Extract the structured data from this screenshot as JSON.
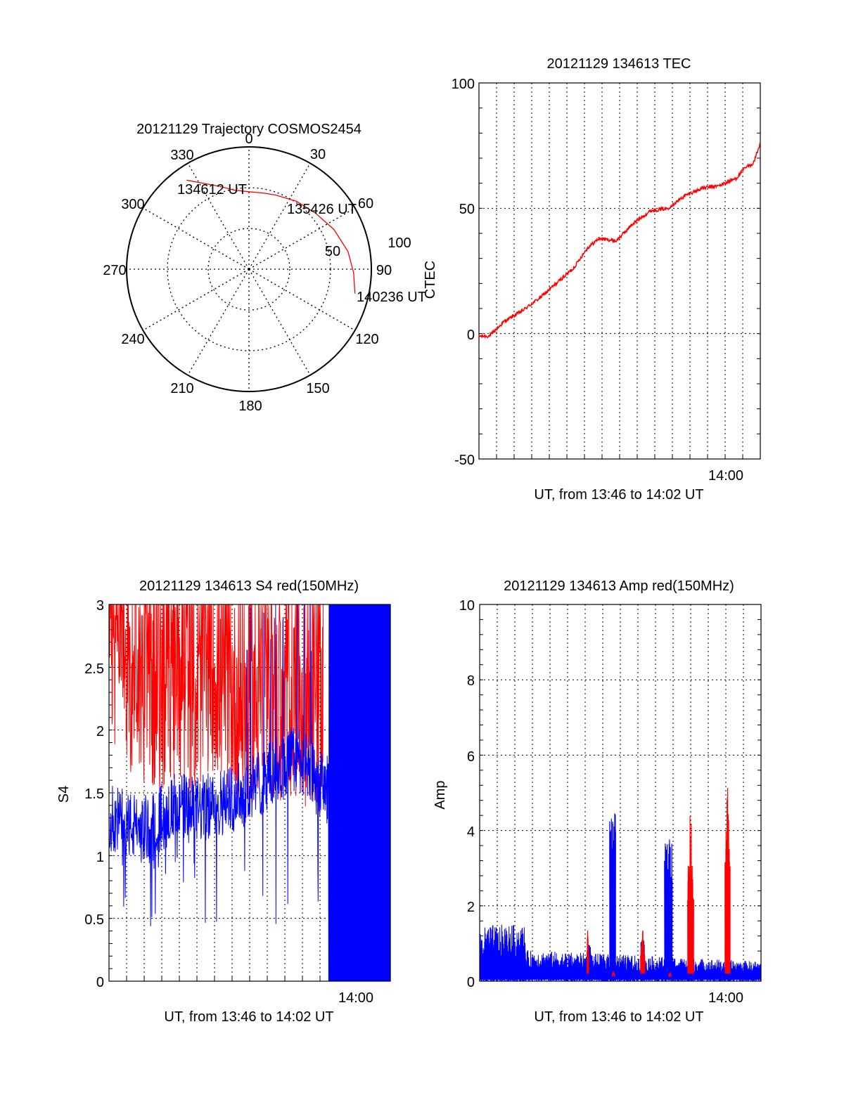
{
  "colors": {
    "red": "#ff0000",
    "blue": "#0000ff",
    "axis": "#000000",
    "grid": "#000000"
  },
  "chart_data": [
    {
      "id": "trajectory",
      "type": "polar",
      "title": "20121129 Trajectory COSMOS2454",
      "azimuth_labels": [
        "0",
        "30",
        "60",
        "90",
        "120",
        "150",
        "180",
        "210",
        "240",
        "270",
        "300",
        "330"
      ],
      "radial_ring_labels": [
        "50",
        "100"
      ],
      "elevation_rings": [
        30,
        60
      ],
      "annotations": [
        "134612 UT",
        "135426 UT",
        "140236 UT"
      ],
      "series": [
        {
          "color": "red",
          "points": [
            {
              "az": 325,
              "el": 10
            },
            {
              "az": 340,
              "el": 25
            },
            {
              "az": 350,
              "el": 31
            },
            {
              "az": 0,
              "el": 33
            },
            {
              "az": 10,
              "el": 33
            },
            {
              "az": 20,
              "el": 32
            },
            {
              "az": 35,
              "el": 29
            },
            {
              "az": 50,
              "el": 26
            },
            {
              "az": 65,
              "el": 21
            },
            {
              "az": 80,
              "el": 16
            },
            {
              "az": 92,
              "el": 13
            },
            {
              "az": 103,
              "el": 10
            }
          ]
        }
      ]
    },
    {
      "id": "tec",
      "type": "line",
      "title": "20121129 134613 TEC",
      "xlabel": "UT, from 13:46 to 14:02 UT",
      "ylabel": "CTEC",
      "xlim": [
        0,
        16.4
      ],
      "ylim": [
        -50,
        100
      ],
      "yticks": [
        "100",
        "50",
        "0",
        "-50"
      ],
      "xtick_label": "14:00",
      "grid": true,
      "series": [
        {
          "color": "red",
          "x": [
            0,
            0.6,
            1.5,
            2.5,
            3.5,
            4.5,
            5.5,
            6.3,
            7.0,
            8.0,
            9.0,
            10.0,
            11.0,
            12.0,
            13.0,
            14.0,
            15.0,
            15.5,
            16.0,
            16.4
          ],
          "y": [
            -1,
            -1,
            5,
            9,
            14,
            20,
            26,
            34,
            38,
            37,
            44,
            49,
            50,
            55,
            58,
            59,
            62,
            66,
            68,
            76
          ]
        }
      ]
    },
    {
      "id": "s4",
      "type": "line",
      "title": "20121129 134613 S4 red(150MHz)",
      "xlabel": "UT, from 13:46 to 14:02 UT",
      "ylabel": "S4",
      "xlim": [
        0,
        16.4
      ],
      "ylim": [
        0,
        3
      ],
      "yticks": [
        "3",
        "2.5",
        "2",
        "1.5",
        "1",
        "0.5",
        "0"
      ],
      "xtick_label": "14:00",
      "grid": true,
      "series": [
        {
          "color": "red",
          "x": [
            0,
            1,
            2,
            3,
            4,
            5,
            6,
            7,
            8,
            9,
            10,
            11,
            12,
            12.5
          ],
          "y": [
            2.6,
            2.4,
            2.3,
            2.2,
            2.3,
            2.2,
            2.4,
            2.2,
            2.1,
            2.2,
            2.1,
            2.2,
            2.0,
            2.0
          ]
        },
        {
          "color": "blue",
          "x": [
            0,
            1,
            2,
            3,
            4,
            5,
            6,
            7,
            8,
            9,
            10,
            11,
            12,
            13,
            14,
            15,
            16.4
          ],
          "y": [
            1.3,
            1.25,
            1.2,
            1.3,
            1.4,
            1.35,
            1.4,
            1.45,
            1.5,
            1.6,
            1.7,
            1.8,
            1.6,
            1.5,
            1.5,
            1.5,
            1.5
          ]
        }
      ]
    },
    {
      "id": "amp",
      "type": "line",
      "title": "20121129 134613 Amp red(150MHz)",
      "xlabel": "UT, from 13:46 to 14:02 UT",
      "ylabel": "Amp",
      "xlim": [
        0,
        16.4
      ],
      "ylim": [
        0,
        10
      ],
      "yticks": [
        "10",
        "8",
        "6",
        "4",
        "2",
        "0"
      ],
      "xtick_label": "14:00",
      "grid": true,
      "series": [
        {
          "color": "red",
          "x": [
            6.3,
            7.8,
            8.0,
            9.5,
            11.1,
            11.2,
            12.3,
            14.4,
            14.5
          ],
          "y": [
            1.4,
            0.1,
            0.2,
            1.5,
            0.2,
            0.1,
            4.8,
            5.3,
            4.1
          ]
        },
        {
          "color": "blue",
          "x": [
            0,
            1,
            2,
            2.5,
            3,
            4,
            5,
            6,
            7,
            7.8,
            8,
            9,
            10,
            11,
            11.8,
            12.5,
            13,
            14,
            15,
            16.4
          ],
          "y": [
            0.8,
            1.2,
            1.3,
            1.3,
            0.6,
            0.5,
            0.5,
            0.5,
            0.6,
            4.5,
            0.4,
            0.4,
            0.4,
            3.8,
            0.3,
            0.3,
            0.3,
            0.3,
            0.3,
            0.3
          ]
        }
      ]
    }
  ]
}
